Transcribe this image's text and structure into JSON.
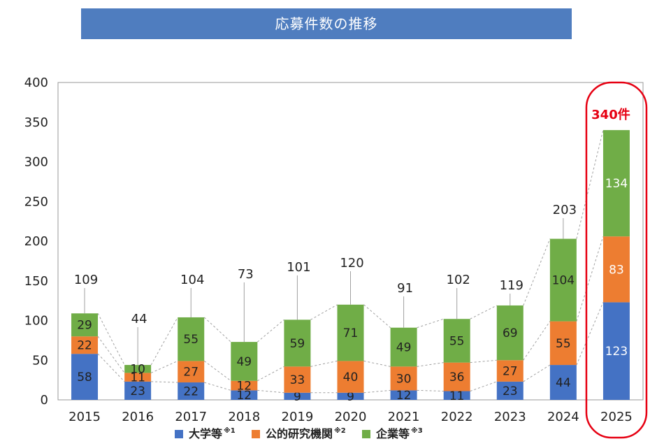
{
  "title": "応募件数の推移",
  "colors": {
    "university": "#4472c4",
    "public": "#ed7d31",
    "company": "#70ad47",
    "highlight": "#e60012",
    "banner": "#4f7dbf"
  },
  "legend": [
    {
      "label": "大学等",
      "sup": "※1",
      "color": "#4472c4"
    },
    {
      "label": "公的研究機関",
      "sup": "※2",
      "color": "#ed7d31"
    },
    {
      "label": "企業等",
      "sup": "※3",
      "color": "#70ad47"
    }
  ],
  "highlight_label": "340件",
  "chart_data": {
    "type": "bar",
    "stacked": true,
    "categories": [
      "2015",
      "2016",
      "2017",
      "2018",
      "2019",
      "2020",
      "2021",
      "2022",
      "2023",
      "2024",
      "2025"
    ],
    "series": [
      {
        "name": "大学等",
        "values": [
          58,
          23,
          22,
          12,
          9,
          9,
          12,
          11,
          23,
          44,
          123
        ]
      },
      {
        "name": "公的研究機関",
        "values": [
          22,
          11,
          27,
          12,
          33,
          40,
          30,
          36,
          27,
          55,
          83
        ]
      },
      {
        "name": "企業等",
        "values": [
          29,
          10,
          55,
          49,
          59,
          71,
          49,
          55,
          69,
          104,
          134
        ]
      }
    ],
    "totals": [
      109,
      44,
      104,
      73,
      101,
      120,
      91,
      102,
      119,
      203,
      340
    ],
    "ylim": [
      0,
      400
    ],
    "yticks": [
      0,
      50,
      100,
      150,
      200,
      250,
      300,
      350,
      400
    ],
    "legend_position": "bottom",
    "grid": false
  }
}
